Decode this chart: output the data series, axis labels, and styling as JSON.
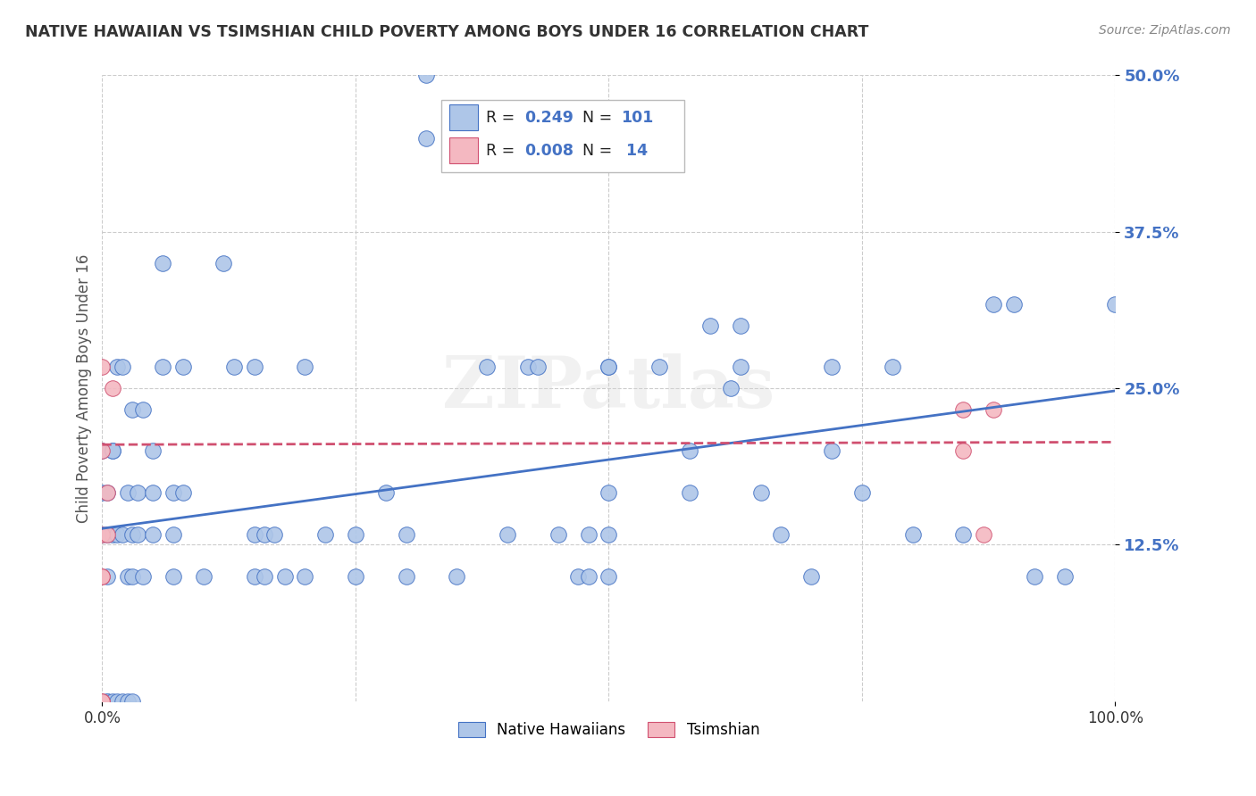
{
  "title": "NATIVE HAWAIIAN VS TSIMSHIAN CHILD POVERTY AMONG BOYS UNDER 16 CORRELATION CHART",
  "source": "Source: ZipAtlas.com",
  "ylabel": "Child Poverty Among Boys Under 16",
  "xlim": [
    0.0,
    1.0
  ],
  "ylim": [
    0.0,
    0.5
  ],
  "watermark": "ZIPatlas",
  "native_color": "#aec6e8",
  "tsimshian_color": "#f4b8c1",
  "line_color_native": "#4472c4",
  "line_color_tsimshian": "#d05070",
  "background_color": "#ffffff",
  "grid_color": "#cccccc",
  "native_hawaiians": [
    [
      0.0,
      0.167
    ],
    [
      0.0,
      0.2
    ],
    [
      0.0,
      0.133
    ],
    [
      0.0,
      0.0
    ],
    [
      0.005,
      0.0
    ],
    [
      0.005,
      0.167
    ],
    [
      0.005,
      0.133
    ],
    [
      0.005,
      0.1
    ],
    [
      0.005,
      0.0
    ],
    [
      0.01,
      0.2
    ],
    [
      0.01,
      0.2
    ],
    [
      0.01,
      0.133
    ],
    [
      0.01,
      0.0
    ],
    [
      0.015,
      0.267
    ],
    [
      0.015,
      0.133
    ],
    [
      0.015,
      0.0
    ],
    [
      0.02,
      0.267
    ],
    [
      0.02,
      0.133
    ],
    [
      0.02,
      0.0
    ],
    [
      0.025,
      0.167
    ],
    [
      0.025,
      0.1
    ],
    [
      0.025,
      0.0
    ],
    [
      0.03,
      0.233
    ],
    [
      0.03,
      0.133
    ],
    [
      0.03,
      0.1
    ],
    [
      0.03,
      0.0
    ],
    [
      0.035,
      0.167
    ],
    [
      0.035,
      0.133
    ],
    [
      0.04,
      0.233
    ],
    [
      0.04,
      0.1
    ],
    [
      0.05,
      0.2
    ],
    [
      0.05,
      0.167
    ],
    [
      0.05,
      0.133
    ],
    [
      0.06,
      0.35
    ],
    [
      0.06,
      0.267
    ],
    [
      0.07,
      0.167
    ],
    [
      0.07,
      0.133
    ],
    [
      0.07,
      0.1
    ],
    [
      0.08,
      0.267
    ],
    [
      0.08,
      0.167
    ],
    [
      0.1,
      0.1
    ],
    [
      0.12,
      0.35
    ],
    [
      0.13,
      0.267
    ],
    [
      0.15,
      0.133
    ],
    [
      0.15,
      0.1
    ],
    [
      0.15,
      0.267
    ],
    [
      0.16,
      0.133
    ],
    [
      0.16,
      0.1
    ],
    [
      0.17,
      0.133
    ],
    [
      0.18,
      0.1
    ],
    [
      0.2,
      0.1
    ],
    [
      0.2,
      0.267
    ],
    [
      0.22,
      0.133
    ],
    [
      0.25,
      0.133
    ],
    [
      0.25,
      0.1
    ],
    [
      0.28,
      0.167
    ],
    [
      0.3,
      0.133
    ],
    [
      0.3,
      0.1
    ],
    [
      0.32,
      0.5
    ],
    [
      0.32,
      0.45
    ],
    [
      0.35,
      0.1
    ],
    [
      0.38,
      0.267
    ],
    [
      0.4,
      0.133
    ],
    [
      0.42,
      0.267
    ],
    [
      0.43,
      0.267
    ],
    [
      0.45,
      0.133
    ],
    [
      0.47,
      0.1
    ],
    [
      0.48,
      0.133
    ],
    [
      0.48,
      0.1
    ],
    [
      0.5,
      0.267
    ],
    [
      0.5,
      0.267
    ],
    [
      0.5,
      0.167
    ],
    [
      0.5,
      0.133
    ],
    [
      0.5,
      0.1
    ],
    [
      0.55,
      0.267
    ],
    [
      0.58,
      0.2
    ],
    [
      0.58,
      0.167
    ],
    [
      0.6,
      0.3
    ],
    [
      0.62,
      0.25
    ],
    [
      0.63,
      0.3
    ],
    [
      0.63,
      0.267
    ],
    [
      0.65,
      0.167
    ],
    [
      0.67,
      0.133
    ],
    [
      0.7,
      0.1
    ],
    [
      0.72,
      0.267
    ],
    [
      0.72,
      0.2
    ],
    [
      0.75,
      0.167
    ],
    [
      0.78,
      0.267
    ],
    [
      0.8,
      0.133
    ],
    [
      0.85,
      0.133
    ],
    [
      0.88,
      0.317
    ],
    [
      0.9,
      0.317
    ],
    [
      0.92,
      0.1
    ],
    [
      0.95,
      0.1
    ],
    [
      1.0,
      0.317
    ]
  ],
  "tsimshian": [
    [
      0.0,
      0.1
    ],
    [
      0.0,
      0.133
    ],
    [
      0.0,
      0.2
    ],
    [
      0.0,
      0.267
    ],
    [
      0.0,
      0.1
    ],
    [
      0.0,
      0.0
    ],
    [
      0.0,
      0.0
    ],
    [
      0.005,
      0.167
    ],
    [
      0.005,
      0.133
    ],
    [
      0.01,
      0.25
    ],
    [
      0.85,
      0.233
    ],
    [
      0.85,
      0.2
    ],
    [
      0.87,
      0.133
    ],
    [
      0.88,
      0.233
    ]
  ],
  "native_line": [
    [
      0.0,
      0.138
    ],
    [
      1.0,
      0.248
    ]
  ],
  "tsimshian_line": [
    [
      0.0,
      0.205
    ],
    [
      1.0,
      0.207
    ]
  ]
}
